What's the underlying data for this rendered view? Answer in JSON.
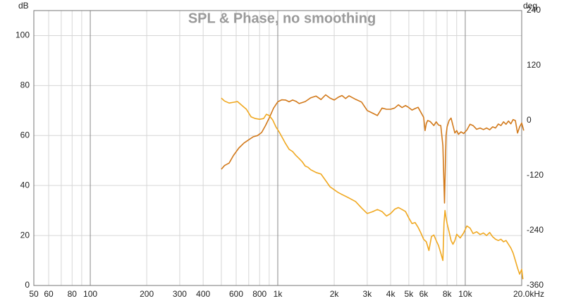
{
  "chart_data": {
    "type": "line",
    "title": "SPL & Phase, no smoothing",
    "x_axis": {
      "unit": "Hz",
      "scale": "log",
      "range": [
        50,
        20000
      ],
      "major_lines": [
        100,
        1000,
        10000
      ],
      "minor_lines": [
        60,
        70,
        80,
        90,
        200,
        300,
        400,
        500,
        600,
        700,
        800,
        900,
        2000,
        3000,
        4000,
        5000,
        6000,
        7000,
        8000,
        9000
      ],
      "tick_labels": [
        {
          "value": 50,
          "text": "50"
        },
        {
          "value": 60,
          "text": "60"
        },
        {
          "value": 80,
          "text": "80"
        },
        {
          "value": 100,
          "text": "100"
        },
        {
          "value": 200,
          "text": "200"
        },
        {
          "value": 300,
          "text": "300"
        },
        {
          "value": 400,
          "text": "400"
        },
        {
          "value": 600,
          "text": "600"
        },
        {
          "value": 800,
          "text": "800"
        },
        {
          "value": 1000,
          "text": "1k"
        },
        {
          "value": 2000,
          "text": "2k"
        },
        {
          "value": 3000,
          "text": "3k"
        },
        {
          "value": 4000,
          "text": "4k"
        },
        {
          "value": 5000,
          "text": "5k"
        },
        {
          "value": 6000,
          "text": "6k"
        },
        {
          "value": 8000,
          "text": "8k"
        },
        {
          "value": 10000,
          "text": "10k"
        },
        {
          "value": 20000,
          "text": "20.0kHz"
        }
      ]
    },
    "y_left": {
      "unit": "dB",
      "range": [
        0,
        110
      ],
      "ticks": [
        0,
        20,
        40,
        60,
        80,
        100
      ]
    },
    "y_right": {
      "unit": "deg",
      "range": [
        -360,
        240
      ],
      "ticks": [
        -360,
        -240,
        -120,
        0,
        120,
        240
      ]
    },
    "grid": true,
    "series": [
      {
        "axis": "left",
        "color": "#d2791a",
        "points": [
          [
            500,
            46.5
          ],
          [
            520,
            48
          ],
          [
            550,
            49
          ],
          [
            580,
            52
          ],
          [
            620,
            55
          ],
          [
            660,
            57
          ],
          [
            700,
            58.3
          ],
          [
            740,
            59.5
          ],
          [
            780,
            60
          ],
          [
            820,
            61.2
          ],
          [
            860,
            64
          ],
          [
            900,
            67
          ],
          [
            950,
            71
          ],
          [
            1000,
            73.5
          ],
          [
            1050,
            74.3
          ],
          [
            1100,
            74.2
          ],
          [
            1150,
            73.5
          ],
          [
            1200,
            74.2
          ],
          [
            1250,
            73.7
          ],
          [
            1300,
            72.8
          ],
          [
            1400,
            73.6
          ],
          [
            1500,
            75.1
          ],
          [
            1600,
            75.8
          ],
          [
            1700,
            74.4
          ],
          [
            1800,
            76.3
          ],
          [
            1900,
            75.0
          ],
          [
            2000,
            74.2
          ],
          [
            2100,
            75.3
          ],
          [
            2200,
            76.0
          ],
          [
            2300,
            74.8
          ],
          [
            2400,
            75.9
          ],
          [
            2600,
            74.5
          ],
          [
            2800,
            73.4
          ],
          [
            3000,
            70.0
          ],
          [
            3200,
            69.0
          ],
          [
            3400,
            68.0
          ],
          [
            3600,
            71.0
          ],
          [
            3800,
            70.5
          ],
          [
            4000,
            70.5
          ],
          [
            4200,
            71.0
          ],
          [
            4400,
            72.3
          ],
          [
            4600,
            71.2
          ],
          [
            4800,
            72.0
          ],
          [
            5000,
            71.2
          ],
          [
            5200,
            70.2
          ],
          [
            5400,
            70.8
          ],
          [
            5600,
            71.3
          ],
          [
            5800,
            69.3
          ],
          [
            6000,
            67.3
          ],
          [
            6100,
            62.0
          ],
          [
            6200,
            64.8
          ],
          [
            6300,
            66.0
          ],
          [
            6500,
            65.6
          ],
          [
            6800,
            64.0
          ],
          [
            7000,
            65.5
          ],
          [
            7200,
            64.2
          ],
          [
            7400,
            64.0
          ],
          [
            7600,
            56.0
          ],
          [
            7700,
            40.0
          ],
          [
            7750,
            33.0
          ],
          [
            7800,
            42.0
          ],
          [
            7900,
            60.0
          ],
          [
            8000,
            63.5
          ],
          [
            8200,
            66.0
          ],
          [
            8400,
            67.0
          ],
          [
            8600,
            64.0
          ],
          [
            8800,
            61.0
          ],
          [
            9000,
            62.0
          ],
          [
            9200,
            60.5
          ],
          [
            9500,
            61.5
          ],
          [
            9800,
            60.8
          ],
          [
            10200,
            62.2
          ],
          [
            10600,
            64.5
          ],
          [
            11000,
            64.0
          ],
          [
            11500,
            62.5
          ],
          [
            12000,
            63.0
          ],
          [
            12500,
            62.4
          ],
          [
            13000,
            63.0
          ],
          [
            13500,
            62.3
          ],
          [
            14000,
            63.5
          ],
          [
            14500,
            63.0
          ],
          [
            15000,
            64.6
          ],
          [
            15500,
            64.0
          ],
          [
            16000,
            65.5
          ],
          [
            16500,
            64.5
          ],
          [
            17000,
            65.8
          ],
          [
            17500,
            64.7
          ],
          [
            18000,
            66.4
          ],
          [
            18500,
            66.0
          ],
          [
            19000,
            61.0
          ],
          [
            19500,
            63.5
          ],
          [
            20000,
            65.0
          ],
          [
            20500,
            62.0
          ]
        ]
      },
      {
        "axis": "left",
        "color": "#f0a820",
        "points": [
          [
            500,
            75.0
          ],
          [
            520,
            73.8
          ],
          [
            550,
            73.0
          ],
          [
            580,
            73.3
          ],
          [
            610,
            73.6
          ],
          [
            640,
            72.2
          ],
          [
            680,
            70.5
          ],
          [
            720,
            67.5
          ],
          [
            760,
            66.8
          ],
          [
            800,
            66.5
          ],
          [
            840,
            66.8
          ],
          [
            870,
            68.5
          ],
          [
            900,
            68.0
          ],
          [
            940,
            66.2
          ],
          [
            980,
            63.3
          ],
          [
            1020,
            61.3
          ],
          [
            1060,
            59.0
          ],
          [
            1100,
            56.8
          ],
          [
            1150,
            54.5
          ],
          [
            1200,
            53.6
          ],
          [
            1250,
            52.0
          ],
          [
            1300,
            50.8
          ],
          [
            1350,
            49.5
          ],
          [
            1400,
            47.8
          ],
          [
            1450,
            47.3
          ],
          [
            1500,
            46.3
          ],
          [
            1600,
            45.2
          ],
          [
            1700,
            44.6
          ],
          [
            1800,
            42.0
          ],
          [
            1900,
            39.5
          ],
          [
            2000,
            38.3
          ],
          [
            2100,
            37.2
          ],
          [
            2200,
            36.4
          ],
          [
            2400,
            35.0
          ],
          [
            2600,
            33.6
          ],
          [
            2800,
            31.0
          ],
          [
            3000,
            28.8
          ],
          [
            3200,
            29.5
          ],
          [
            3400,
            30.4
          ],
          [
            3600,
            29.6
          ],
          [
            3800,
            27.8
          ],
          [
            4000,
            28.8
          ],
          [
            4200,
            30.5
          ],
          [
            4400,
            31.2
          ],
          [
            4600,
            30.4
          ],
          [
            4800,
            29.6
          ],
          [
            5000,
            27.0
          ],
          [
            5200,
            24.8
          ],
          [
            5400,
            25.2
          ],
          [
            5600,
            23.3
          ],
          [
            5800,
            21.0
          ],
          [
            6000,
            18.5
          ],
          [
            6200,
            17.5
          ],
          [
            6400,
            14.0
          ],
          [
            6600,
            19.6
          ],
          [
            6800,
            20.2
          ],
          [
            7000,
            18.0
          ],
          [
            7200,
            16.0
          ],
          [
            7400,
            13.0
          ],
          [
            7600,
            10.0
          ],
          [
            7700,
            25.0
          ],
          [
            7800,
            30.0
          ],
          [
            7900,
            27.0
          ],
          [
            8000,
            24.8
          ],
          [
            8200,
            21.5
          ],
          [
            8400,
            18.0
          ],
          [
            8600,
            16.5
          ],
          [
            8800,
            18.0
          ],
          [
            9000,
            20.5
          ],
          [
            9400,
            19.0
          ],
          [
            9800,
            21.0
          ],
          [
            10200,
            23.8
          ],
          [
            10600,
            23.0
          ],
          [
            11000,
            20.8
          ],
          [
            11500,
            21.5
          ],
          [
            12000,
            20.4
          ],
          [
            12500,
            21.0
          ],
          [
            13000,
            20.0
          ],
          [
            13500,
            21.2
          ],
          [
            14000,
            19.5
          ],
          [
            14500,
            18.5
          ],
          [
            15000,
            18.0
          ],
          [
            15500,
            18.5
          ],
          [
            16000,
            17.5
          ],
          [
            16500,
            18.0
          ],
          [
            17000,
            16.5
          ],
          [
            17500,
            15.0
          ],
          [
            18000,
            13.0
          ],
          [
            18500,
            10.0
          ],
          [
            19000,
            7.0
          ],
          [
            19500,
            4.5
          ],
          [
            20000,
            6.5
          ],
          [
            20300,
            2.5
          ]
        ]
      }
    ]
  }
}
